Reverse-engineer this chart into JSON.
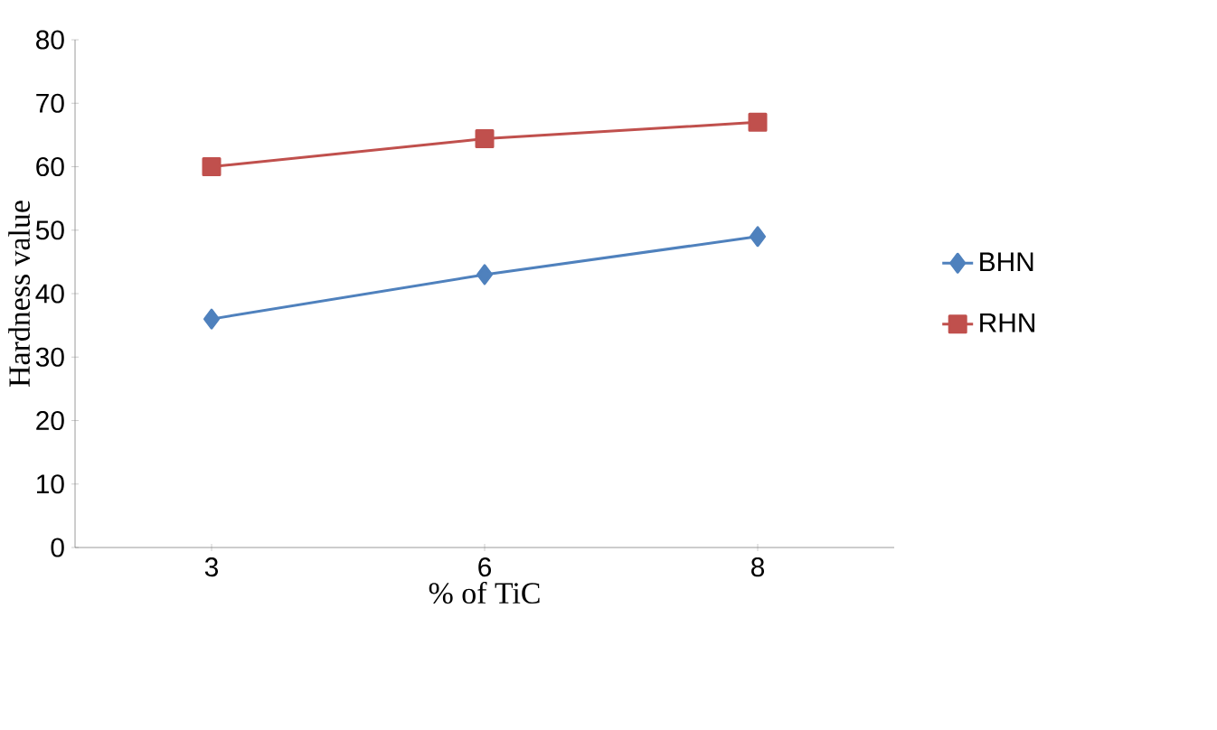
{
  "chart_data": {
    "type": "line",
    "xlabel": "% of TiC",
    "ylabel": "Hardness value",
    "categories": [
      "3",
      "6",
      "8"
    ],
    "series": [
      {
        "name": "BHN",
        "color": "#4f81bd",
        "marker": "diamond",
        "values": [
          36,
          43,
          49
        ]
      },
      {
        "name": "RHN",
        "color": "#c0504d",
        "marker": "square",
        "values": [
          60,
          64.4,
          67
        ]
      }
    ],
    "ylim": [
      0,
      80
    ],
    "yticks": [
      0,
      10,
      20,
      30,
      40,
      50,
      60,
      70,
      80
    ],
    "grid": false,
    "legend": "right"
  }
}
